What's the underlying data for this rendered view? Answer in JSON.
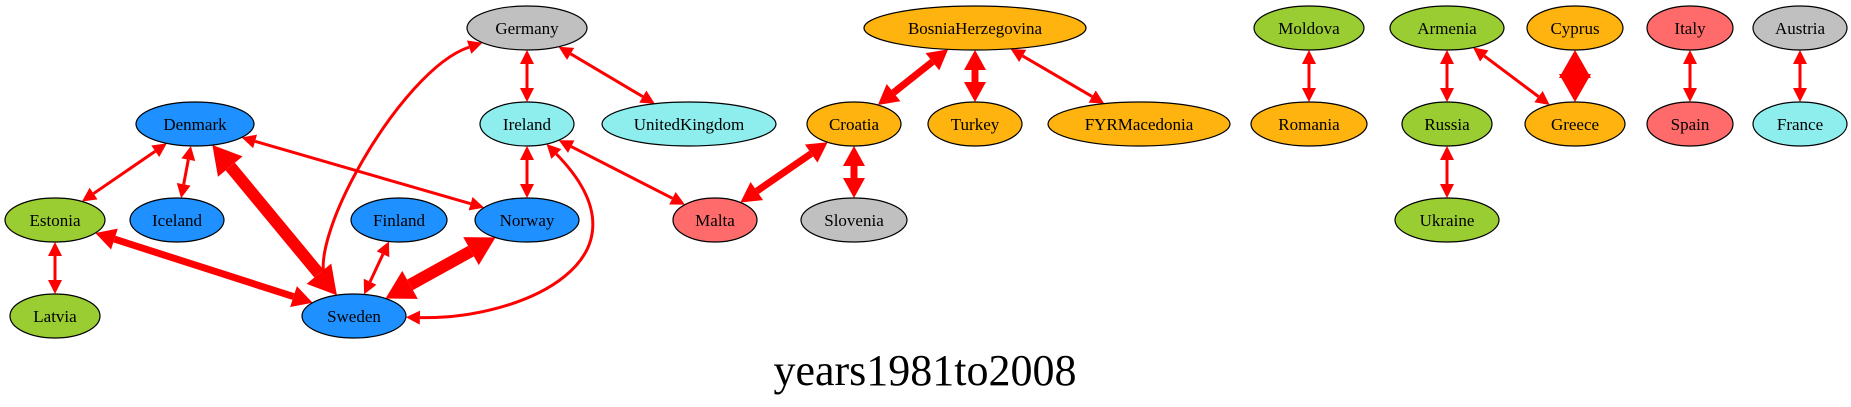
{
  "title": "years1981to2008",
  "colors": {
    "edge": "#ff0000",
    "blue": "#1e90ff",
    "cyan": "#8eeded",
    "green": "#9acd32",
    "orange": "#ffb30f",
    "red": "#ff6b6b",
    "gray": "#c0c0c0"
  },
  "nodes": [
    {
      "id": "Germany",
      "label": "Germany",
      "color": "gray"
    },
    {
      "id": "Ireland",
      "label": "Ireland",
      "color": "cyan"
    },
    {
      "id": "UnitedKingdom",
      "label": "UnitedKingdom",
      "color": "cyan"
    },
    {
      "id": "Denmark",
      "label": "Denmark",
      "color": "blue"
    },
    {
      "id": "Estonia",
      "label": "Estonia",
      "color": "green"
    },
    {
      "id": "Iceland",
      "label": "Iceland",
      "color": "blue"
    },
    {
      "id": "Finland",
      "label": "Finland",
      "color": "blue"
    },
    {
      "id": "Norway",
      "label": "Norway",
      "color": "blue"
    },
    {
      "id": "Latvia",
      "label": "Latvia",
      "color": "green"
    },
    {
      "id": "Sweden",
      "label": "Sweden",
      "color": "blue"
    },
    {
      "id": "BosniaHerzegovina",
      "label": "BosniaHerzegovina",
      "color": "orange"
    },
    {
      "id": "Croatia",
      "label": "Croatia",
      "color": "orange"
    },
    {
      "id": "Turkey",
      "label": "Turkey",
      "color": "orange"
    },
    {
      "id": "FYRMacedonia",
      "label": "FYRMacedonia",
      "color": "orange"
    },
    {
      "id": "Malta",
      "label": "Malta",
      "color": "red"
    },
    {
      "id": "Slovenia",
      "label": "Slovenia",
      "color": "gray"
    },
    {
      "id": "Moldova",
      "label": "Moldova",
      "color": "green"
    },
    {
      "id": "Romania",
      "label": "Romania",
      "color": "orange"
    },
    {
      "id": "Armenia",
      "label": "Armenia",
      "color": "green"
    },
    {
      "id": "Russia",
      "label": "Russia",
      "color": "green"
    },
    {
      "id": "Ukraine",
      "label": "Ukraine",
      "color": "green"
    },
    {
      "id": "Cyprus",
      "label": "Cyprus",
      "color": "orange"
    },
    {
      "id": "Greece",
      "label": "Greece",
      "color": "orange"
    },
    {
      "id": "Italy",
      "label": "Italy",
      "color": "red"
    },
    {
      "id": "Spain",
      "label": "Spain",
      "color": "red"
    },
    {
      "id": "Austria",
      "label": "Austria",
      "color": "gray"
    },
    {
      "id": "France",
      "label": "France",
      "color": "cyan"
    }
  ],
  "edges": [
    {
      "source": "Germany",
      "target": "Ireland",
      "weight": 1
    },
    {
      "source": "Germany",
      "target": "UnitedKingdom",
      "weight": 1
    },
    {
      "source": "Germany",
      "target": "Sweden",
      "weight": 1
    },
    {
      "source": "Ireland",
      "target": "Norway",
      "weight": 1
    },
    {
      "source": "Ireland",
      "target": "Malta",
      "weight": 1
    },
    {
      "source": "Ireland",
      "target": "Sweden",
      "weight": 1
    },
    {
      "source": "Denmark",
      "target": "Estonia",
      "weight": 1
    },
    {
      "source": "Denmark",
      "target": "Iceland",
      "weight": 1
    },
    {
      "source": "Denmark",
      "target": "Sweden",
      "weight": 3
    },
    {
      "source": "Denmark",
      "target": "Norway",
      "weight": 1
    },
    {
      "source": "Estonia",
      "target": "Sweden",
      "weight": 2
    },
    {
      "source": "Estonia",
      "target": "Latvia",
      "weight": 1
    },
    {
      "source": "Finland",
      "target": "Sweden",
      "weight": 1
    },
    {
      "source": "Norway",
      "target": "Sweden",
      "weight": 3
    },
    {
      "source": "BosniaHerzegovina",
      "target": "Croatia",
      "weight": 2
    },
    {
      "source": "BosniaHerzegovina",
      "target": "Turkey",
      "weight": 2
    },
    {
      "source": "BosniaHerzegovina",
      "target": "FYRMacedonia",
      "weight": 1
    },
    {
      "source": "Croatia",
      "target": "Malta",
      "weight": 2
    },
    {
      "source": "Croatia",
      "target": "Slovenia",
      "weight": 2
    },
    {
      "source": "Moldova",
      "target": "Romania",
      "weight": 1
    },
    {
      "source": "Armenia",
      "target": "Russia",
      "weight": 1
    },
    {
      "source": "Armenia",
      "target": "Greece",
      "weight": 1
    },
    {
      "source": "Russia",
      "target": "Ukraine",
      "weight": 1
    },
    {
      "source": "Cyprus",
      "target": "Greece",
      "weight": 3
    },
    {
      "source": "Italy",
      "target": "Spain",
      "weight": 1
    },
    {
      "source": "Austria",
      "target": "France",
      "weight": 1
    }
  ]
}
